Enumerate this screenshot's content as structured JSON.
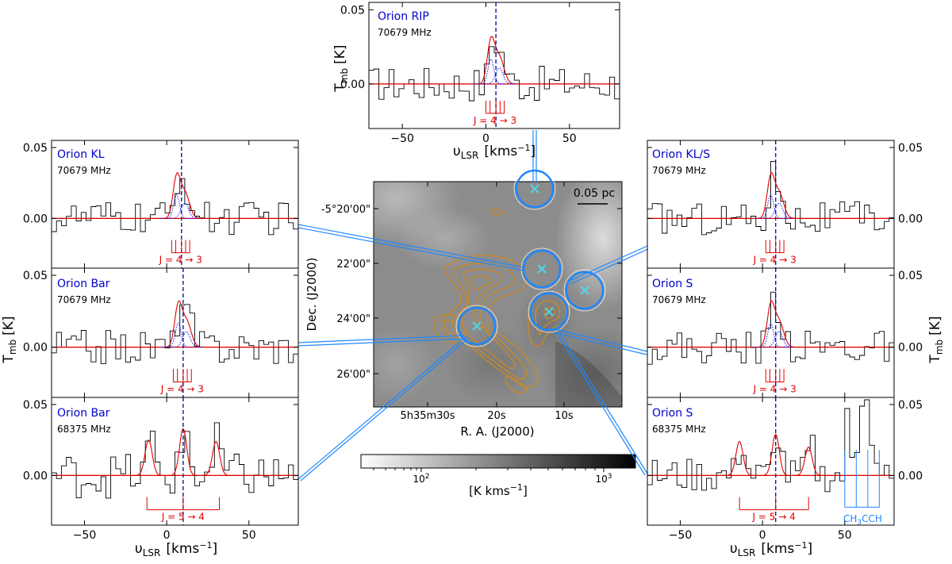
{
  "figure": {
    "ylabel_T": "T",
    "ylabel_T_sub": "mb",
    "ylabel_T_unit": "[K]",
    "xlabel_v": "υ",
    "xlabel_v_sub": "LSR",
    "xlabel_v_unit": "[kms",
    "xlabel_v_exp": "−1",
    "xlabel_v_close": "]"
  },
  "map": {
    "scale_label": "0.05 pc",
    "dec_label": "Dec. (J2000)",
    "ra_label": "R. A.  (J2000)",
    "dec_ticks": [
      "-5°20'00\"",
      "22'00\"",
      "24'00\"",
      "26'00\""
    ],
    "ra_ticks": [
      "5h35m30s",
      "20s",
      "10s"
    ],
    "colorbar_unit": "[K kms",
    "colorbar_unit_exp": "−1",
    "colorbar_unit_close": "]",
    "colorbar_tick1": "10",
    "colorbar_tick1_exp": "2",
    "colorbar_tick2": "10",
    "colorbar_tick2_exp": "3",
    "colors": {
      "circle": "#1e88ff",
      "cross": "#4fd6e8",
      "contour": "#c8892a"
    }
  },
  "chart_data": [
    {
      "type": "line",
      "id": "orion-rip",
      "title": "Orion RIP",
      "freq": "70679 MHz",
      "x_range": [
        -70,
        80
      ],
      "ylim": [
        -0.03,
        0.055
      ],
      "xticks": [
        -50,
        0,
        50
      ],
      "yticks": [
        0.0,
        0.05
      ],
      "ytick_labels": [
        "0.00",
        "0.05"
      ],
      "vsys": 6,
      "transition": "J = 4 → 3",
      "bracket": [
        0,
        11
      ],
      "lines": [
        0,
        2.5,
        6,
        8.5,
        11
      ]
    },
    {
      "type": "line",
      "id": "orion-kl",
      "title": "Orion KL",
      "freq": "70679 MHz",
      "x_range": [
        -70,
        80
      ],
      "ylim": [
        -0.035,
        0.055
      ],
      "xticks": [
        -50,
        0,
        50
      ],
      "yticks": [
        0.0,
        0.05
      ],
      "ytick_labels": [
        "0.00",
        "0.05"
      ],
      "vsys": 9,
      "transition": "J = 4 → 3",
      "bracket": [
        3,
        14
      ],
      "lines": [
        3,
        5.5,
        9,
        11.5,
        14
      ]
    },
    {
      "type": "line",
      "id": "orion-bar-70",
      "title": "Orion Bar",
      "freq": "70679 MHz",
      "x_range": [
        -70,
        80
      ],
      "ylim": [
        -0.035,
        0.055
      ],
      "xticks": [
        -50,
        0,
        50
      ],
      "yticks": [
        0.0,
        0.05
      ],
      "ytick_labels": [
        "0.00",
        "0.05"
      ],
      "vsys": 10,
      "transition": "J = 4 → 3",
      "bracket": [
        4,
        15
      ],
      "lines": [
        4,
        6.5,
        10,
        12.5,
        15
      ]
    },
    {
      "type": "line",
      "id": "orion-bar-68",
      "title": "Orion Bar",
      "freq": "68375 MHz",
      "x_range": [
        -70,
        80
      ],
      "ylim": [
        -0.035,
        0.055
      ],
      "xticks": [
        -50,
        0,
        50
      ],
      "yticks": [
        0.0,
        0.05
      ],
      "ytick_labels": [
        "0.00",
        "0.05"
      ],
      "vsys": 10,
      "transition": "J = 5 → 4",
      "bracket": [
        -12,
        32
      ],
      "lines": [
        -12,
        10,
        32
      ],
      "fit_peaks": [
        [
          -11,
          0.025,
          2.2
        ],
        [
          10,
          0.033,
          2.2
        ],
        [
          30,
          0.024,
          2.2
        ]
      ]
    },
    {
      "type": "line",
      "id": "orion-kl-s",
      "title": "Orion KL/S",
      "freq": "70679 MHz",
      "x_range": [
        -70,
        80
      ],
      "ylim": [
        -0.035,
        0.055
      ],
      "xticks": [
        -50,
        0,
        50
      ],
      "yticks": [
        0.0,
        0.05
      ],
      "ytick_labels": [
        "0.00",
        "0.05"
      ],
      "vsys": 8,
      "transition": "J = 4 → 3",
      "bracket": [
        2,
        13
      ],
      "lines": [
        2,
        4.5,
        8,
        10.5,
        13
      ]
    },
    {
      "type": "line",
      "id": "orion-s-70",
      "title": "Orion S",
      "freq": "70679 MHz",
      "x_range": [
        -70,
        80
      ],
      "ylim": [
        -0.035,
        0.055
      ],
      "xticks": [
        -50,
        0,
        50
      ],
      "yticks": [
        0.0,
        0.05
      ],
      "ytick_labels": [
        "0.00",
        "0.05"
      ],
      "vsys": 8,
      "transition": "J = 4 → 3",
      "bracket": [
        2,
        13
      ],
      "lines": [
        2,
        4.5,
        8,
        10.5,
        13
      ]
    },
    {
      "type": "line",
      "id": "orion-s-68",
      "title": "Orion S",
      "freq": "68375 MHz",
      "x_range": [
        -70,
        80
      ],
      "ylim": [
        -0.035,
        0.055
      ],
      "xticks": [
        -50,
        0,
        50
      ],
      "yticks": [
        0.0,
        0.05
      ],
      "ytick_labels": [
        "0.00",
        "0.05"
      ],
      "vsys": 8,
      "transition": "J = 5 → 4",
      "bracket": [
        -14,
        28
      ],
      "lines": [
        -14,
        8,
        28
      ],
      "fit_peaks": [
        [
          -14,
          0.024,
          2.2
        ],
        [
          8,
          0.029,
          2.2
        ],
        [
          28,
          0.02,
          2.2
        ]
      ],
      "extra": "CH3CCH",
      "extra_lines": [
        50,
        57,
        64,
        71
      ]
    }
  ]
}
